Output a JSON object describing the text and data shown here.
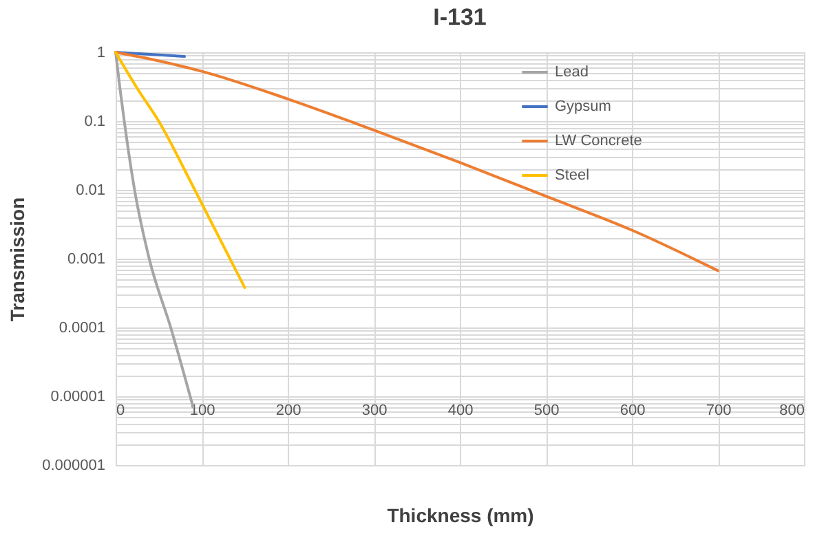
{
  "chart_data": {
    "type": "line",
    "title": "I-131",
    "xlabel": "Thickness (mm)",
    "ylabel": "Transmission",
    "log": "y",
    "grid": true,
    "legend": "top right",
    "xlim": [
      0,
      800
    ],
    "xticks": [
      0,
      100,
      200,
      300,
      400,
      500,
      600,
      700,
      800
    ],
    "ylim": [
      1e-06,
      1
    ],
    "yticks": [
      {
        "value": 1e-06,
        "label": "0.000001"
      },
      {
        "value": 1e-05,
        "label": "0.00001"
      },
      0.0001,
      0.001,
      0.01,
      0.1,
      1
    ],
    "series": [
      {
        "name": "Lead",
        "color": "#a5a5a5",
        "x": [
          0,
          5,
          10,
          22,
          39,
          64,
          90
        ],
        "values": [
          1,
          0.3,
          0.1,
          0.01,
          0.001,
          0.0001,
          7e-06
        ]
      },
      {
        "name": "Gypsum",
        "color": "#4472c4",
        "x": [
          0,
          80
        ],
        "values": [
          1,
          0.87
        ]
      },
      {
        "name": "LW Concrete",
        "color": "#ed7d31",
        "x": [
          0,
          50,
          100,
          200,
          300,
          400,
          500,
          600,
          700
        ],
        "values": [
          1,
          0.75,
          0.53,
          0.21,
          0.074,
          0.025,
          0.0081,
          0.0026,
          0.00067
        ]
      },
      {
        "name": "Steel",
        "color": "#ffc000",
        "x": [
          0,
          25,
          50,
          92,
          150
        ],
        "values": [
          1,
          0.3,
          0.1,
          0.01,
          0.00038
        ]
      }
    ]
  }
}
